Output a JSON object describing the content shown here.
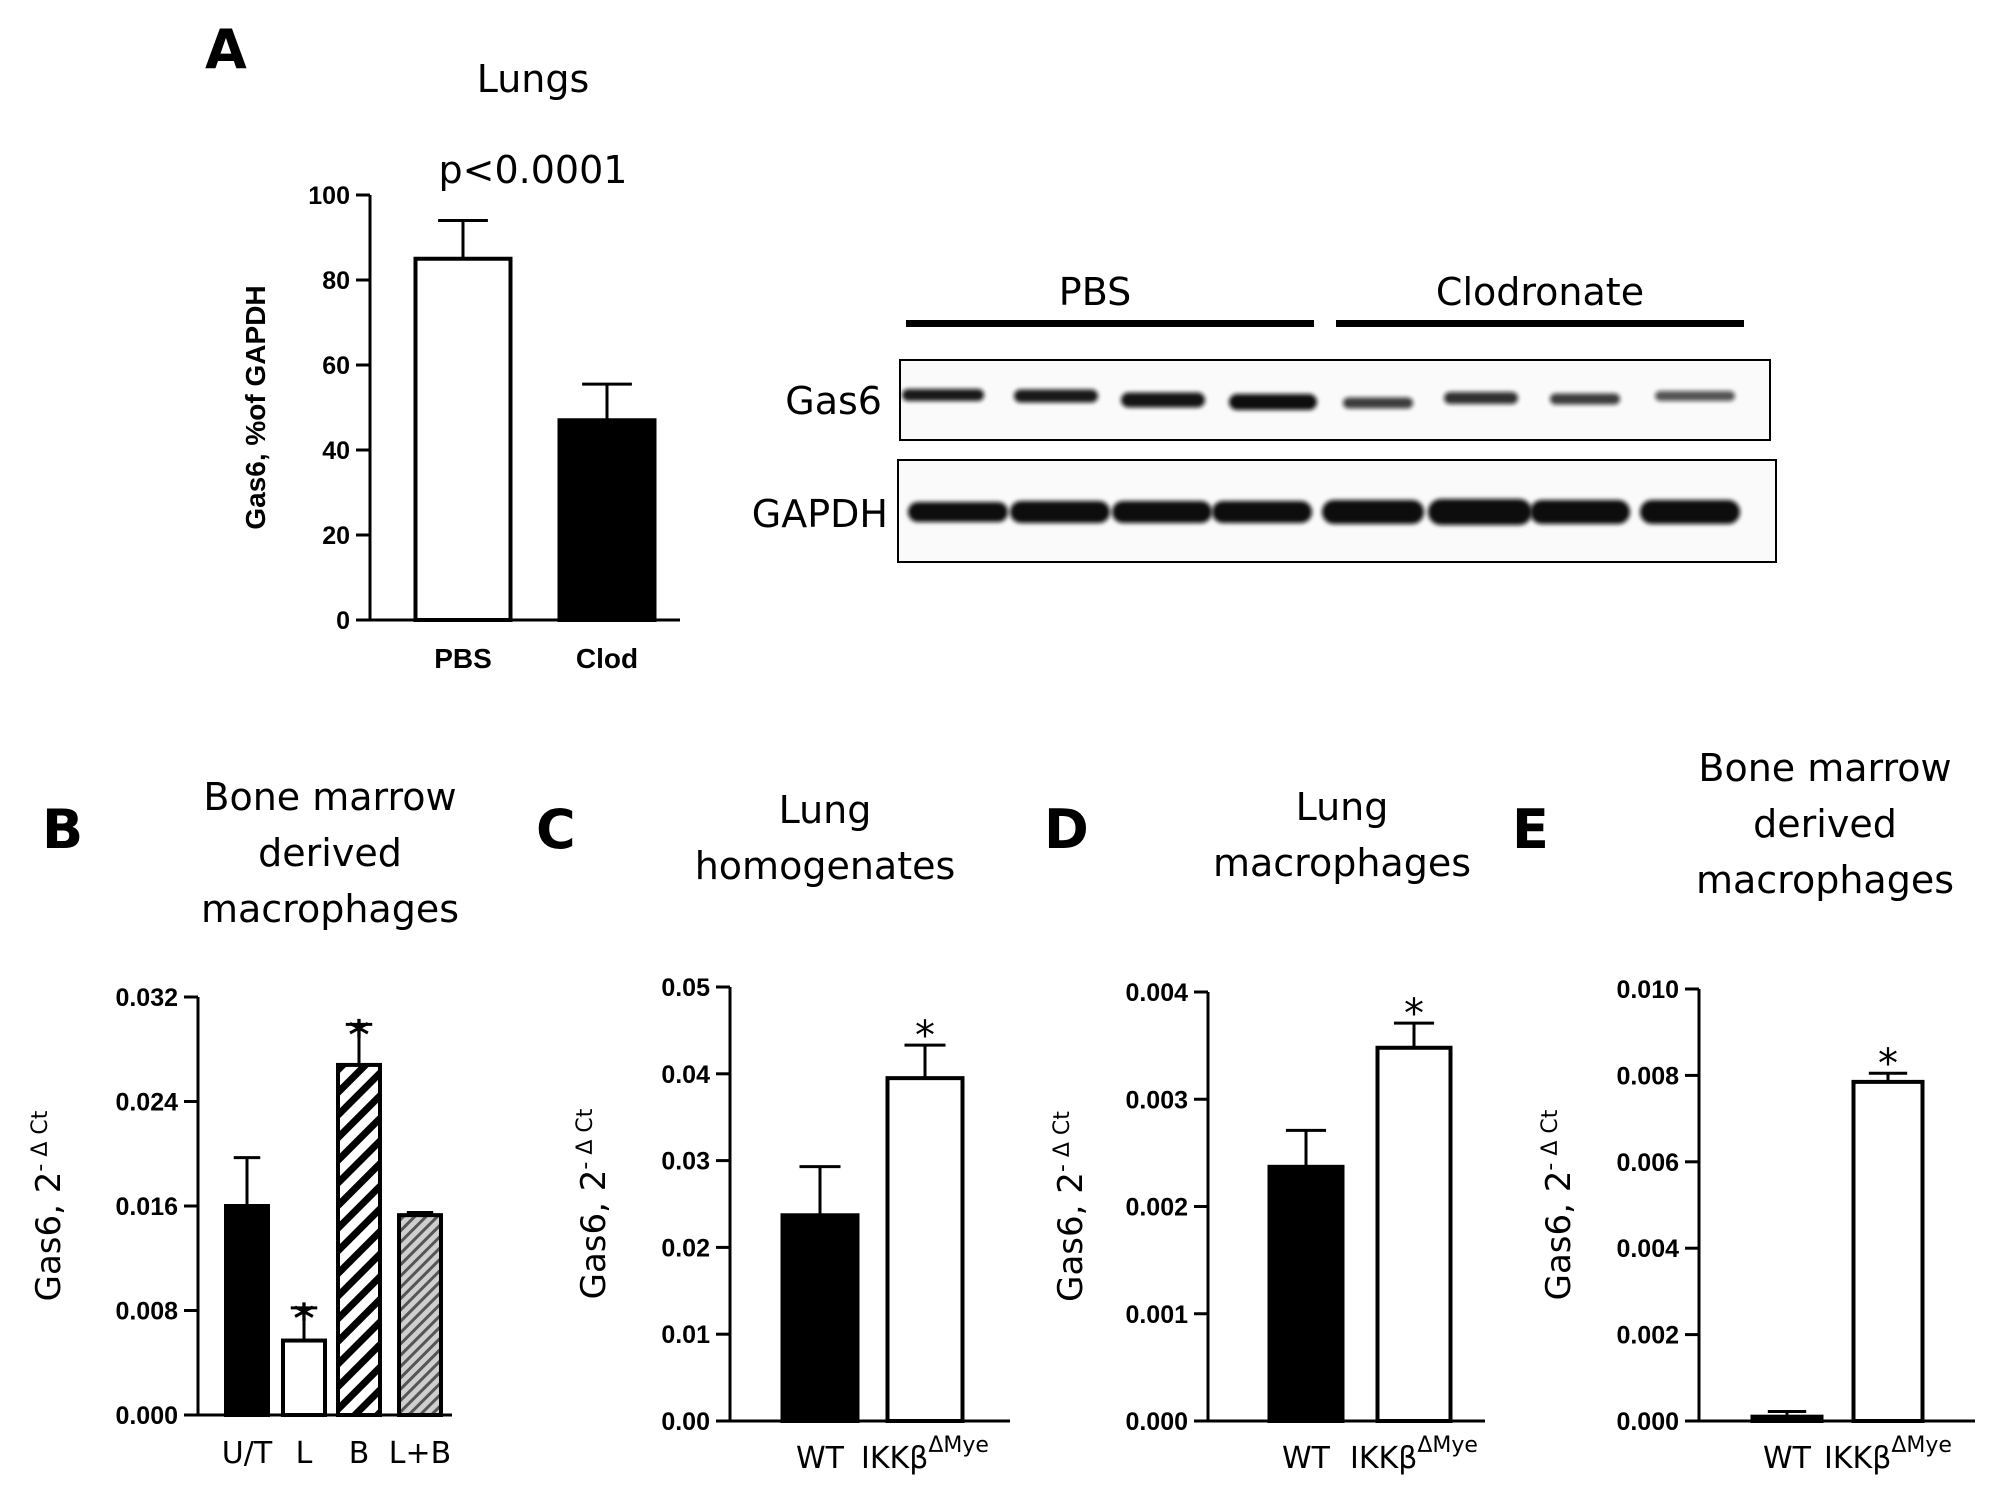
{
  "chart_data": [
    {
      "panel": "A",
      "type": "bar",
      "title": "Lungs",
      "annotation": "p<0.0001",
      "ylabel": "Gas6, %of GAPDH",
      "ylim": [
        0,
        100
      ],
      "yticks": [
        "0",
        "20",
        "40",
        "60",
        "80",
        "100"
      ],
      "categories": [
        "PBS",
        "Clod"
      ],
      "values": [
        85,
        47
      ],
      "errors": [
        9,
        8.5
      ],
      "fills": [
        "white",
        "black"
      ],
      "significance": [
        "",
        ""
      ]
    },
    {
      "panel": "B",
      "type": "bar",
      "title": [
        "Bone marrow",
        "derived",
        "macrophages"
      ],
      "ylabel": "Gas6, 2",
      "ylabel_sup": "- Δ Ct",
      "ylim": [
        0,
        0.032
      ],
      "yticks": [
        "0.000",
        "0.008",
        "0.016",
        "0.024",
        "0.032"
      ],
      "categories": [
        "U/T",
        "L",
        "B",
        "L+B"
      ],
      "values": [
        0.016,
        0.0057,
        0.0268,
        0.0153
      ],
      "errors": [
        0.0037,
        0.0025,
        0.0031,
        0.0002
      ],
      "fills": [
        "black",
        "white",
        "hatch-black",
        "hatch-gray"
      ],
      "significance": [
        "",
        "*",
        "*",
        ""
      ]
    },
    {
      "panel": "C",
      "type": "bar",
      "title": [
        "Lung",
        "homogenates"
      ],
      "ylabel": "Gas6, 2",
      "ylabel_sup": "- Δ Ct",
      "ylim": [
        0,
        0.05
      ],
      "yticks": [
        "0.00",
        "0.01",
        "0.02",
        "0.03",
        "0.04",
        "0.05"
      ],
      "categories": [
        "WT",
        "IKKβ"
      ],
      "category_sup": [
        "",
        "ΔMye"
      ],
      "values": [
        0.0237,
        0.0395
      ],
      "errors": [
        0.0056,
        0.0038
      ],
      "fills": [
        "black",
        "white"
      ],
      "significance": [
        "",
        "*"
      ]
    },
    {
      "panel": "D",
      "type": "bar",
      "title": [
        "Lung",
        "macrophages"
      ],
      "ylabel": "Gas6, 2",
      "ylabel_sup": "- Δ Ct",
      "ylim": [
        0,
        0.004
      ],
      "yticks": [
        "0.000",
        "0.001",
        "0.002",
        "0.003",
        "0.004"
      ],
      "categories": [
        "WT",
        "IKKβ"
      ],
      "category_sup": [
        "",
        "ΔMye"
      ],
      "values": [
        0.00237,
        0.00348
      ],
      "errors": [
        0.00034,
        0.00023
      ],
      "fills": [
        "black",
        "white"
      ],
      "significance": [
        "",
        "*"
      ]
    },
    {
      "panel": "E",
      "type": "bar",
      "title": [
        "Bone marrow",
        "derived",
        "macrophages"
      ],
      "ylabel": "Gas6, 2",
      "ylabel_sup": "- Δ Ct",
      "ylim": [
        0,
        0.01
      ],
      "yticks": [
        "0.000",
        "0.002",
        "0.004",
        "0.006",
        "0.008",
        "0.010"
      ],
      "categories": [
        "WT",
        "IKKβ"
      ],
      "category_sup": [
        "",
        "ΔMye"
      ],
      "values": [
        0.0001,
        0.00785
      ],
      "errors": [
        0.00012,
        0.0002
      ],
      "fills": [
        "black",
        "white"
      ],
      "significance": [
        "",
        "*"
      ]
    }
  ],
  "blot": {
    "groups": [
      "PBS",
      "Clodronate"
    ],
    "rows": [
      "Gas6",
      "GAPDH"
    ],
    "lanes": 8
  }
}
